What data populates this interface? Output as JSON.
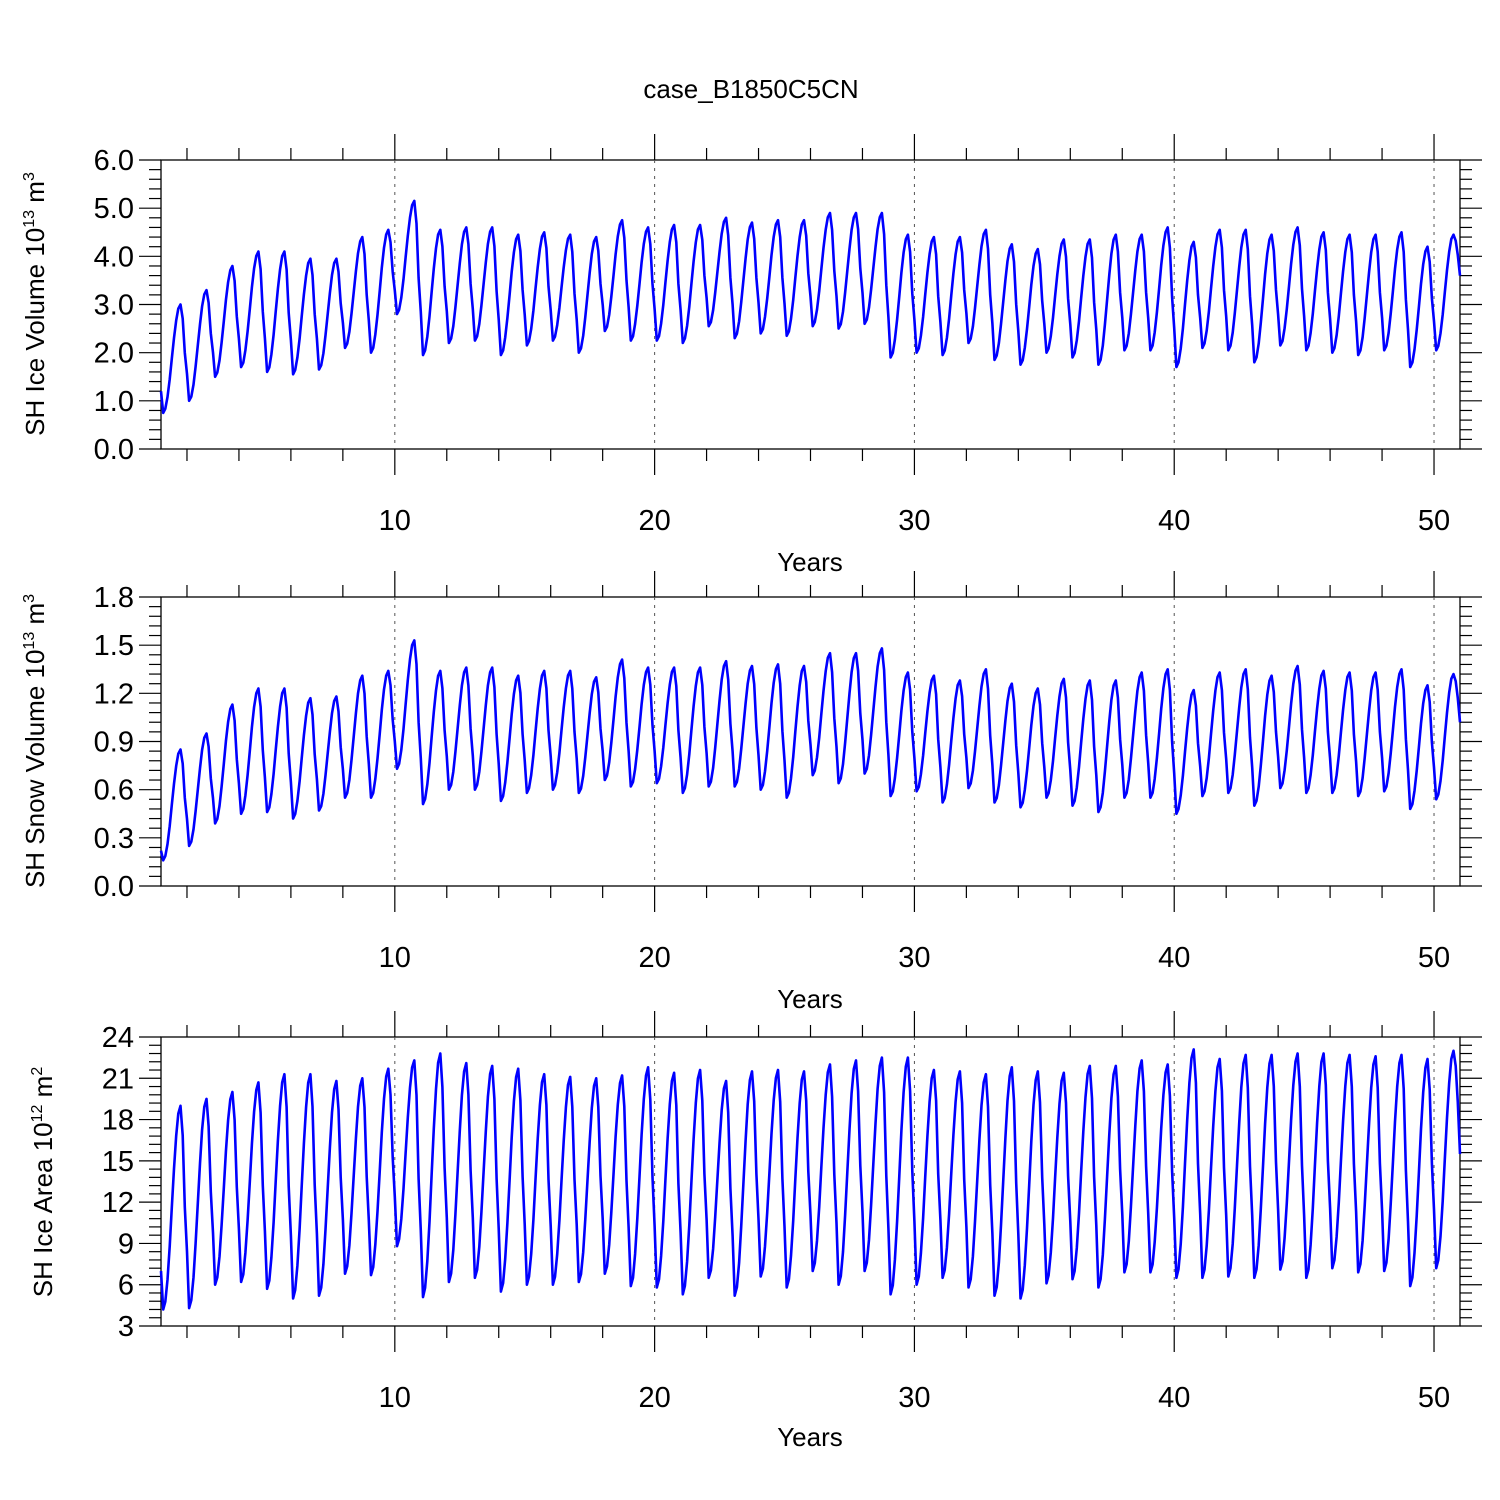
{
  "title": "case_B1850C5CN",
  "chart_data": [
    {
      "type": "line",
      "ylabel": "SH Ice Volume 10",
      "ylabel_exp": "13",
      "ylabel_unit": "m",
      "ylabel_unit_exp": "3",
      "xlabel": "Years",
      "xlim": [
        1,
        51
      ],
      "ylim": [
        0,
        6
      ],
      "yticks": [
        "0.0",
        "1.0",
        "2.0",
        "3.0",
        "4.0",
        "5.0",
        "6.0"
      ],
      "yticks_values": [
        0,
        1,
        2,
        3,
        4,
        5,
        6
      ],
      "xticks": [
        "10",
        "20",
        "30",
        "40",
        "50"
      ],
      "xticks_values": [
        10,
        20,
        30,
        40,
        50
      ],
      "series": [
        {
          "name": "SH ice volume",
          "color": "#0000ff",
          "start_value": 1.2,
          "end_value": 3.6,
          "annual_max": [
            3.0,
            3.3,
            3.8,
            4.1,
            4.1,
            3.95,
            3.95,
            4.4,
            4.55,
            5.15,
            4.55,
            4.6,
            4.6,
            4.45,
            4.5,
            4.45,
            4.4,
            4.75,
            4.6,
            4.65,
            4.65,
            4.8,
            4.7,
            4.75,
            4.75,
            4.9,
            4.9,
            4.9,
            4.45,
            4.4,
            4.4,
            4.55,
            4.25,
            4.15,
            4.35,
            4.35,
            4.45,
            4.45,
            4.6,
            4.3,
            4.55,
            4.55,
            4.45,
            4.6,
            4.5,
            4.45,
            4.45,
            4.5,
            4.2,
            4.45
          ],
          "annual_min": [
            0.75,
            1.0,
            1.5,
            1.7,
            1.6,
            1.55,
            1.65,
            2.1,
            2.0,
            2.8,
            1.95,
            2.2,
            2.25,
            1.95,
            2.15,
            2.25,
            2.0,
            2.45,
            2.25,
            2.25,
            2.2,
            2.55,
            2.3,
            2.4,
            2.35,
            2.55,
            2.5,
            2.6,
            1.9,
            2.0,
            1.95,
            2.2,
            1.85,
            1.75,
            2.0,
            1.9,
            1.75,
            2.05,
            2.05,
            1.7,
            2.1,
            2.05,
            1.8,
            2.15,
            2.05,
            2.0,
            1.95,
            2.05,
            1.7,
            2.05
          ]
        }
      ]
    },
    {
      "type": "line",
      "ylabel": "SH Snow Volume 10",
      "ylabel_exp": "13",
      "ylabel_unit": "m",
      "ylabel_unit_exp": "3",
      "xlabel": "Years",
      "xlim": [
        1,
        51
      ],
      "ylim": [
        0,
        1.8
      ],
      "yticks": [
        "0.0",
        "0.3",
        "0.6",
        "0.9",
        "1.2",
        "1.5",
        "1.8"
      ],
      "yticks_values": [
        0,
        0.3,
        0.6,
        0.9,
        1.2,
        1.5,
        1.8
      ],
      "xticks": [
        "10",
        "20",
        "30",
        "40",
        "50"
      ],
      "xticks_values": [
        10,
        20,
        30,
        40,
        50
      ],
      "series": [
        {
          "name": "SH snow volume",
          "color": "#0000ff",
          "start_value": 0.22,
          "end_value": 1.02,
          "annual_max": [
            0.85,
            0.95,
            1.13,
            1.23,
            1.23,
            1.17,
            1.18,
            1.31,
            1.34,
            1.53,
            1.34,
            1.36,
            1.36,
            1.31,
            1.34,
            1.34,
            1.3,
            1.41,
            1.36,
            1.36,
            1.36,
            1.4,
            1.37,
            1.38,
            1.37,
            1.45,
            1.45,
            1.48,
            1.33,
            1.31,
            1.28,
            1.35,
            1.26,
            1.23,
            1.29,
            1.28,
            1.28,
            1.33,
            1.35,
            1.22,
            1.33,
            1.35,
            1.31,
            1.37,
            1.34,
            1.33,
            1.33,
            1.35,
            1.25,
            1.32
          ],
          "annual_min": [
            0.16,
            0.25,
            0.39,
            0.45,
            0.46,
            0.42,
            0.47,
            0.55,
            0.55,
            0.73,
            0.51,
            0.6,
            0.6,
            0.53,
            0.58,
            0.6,
            0.58,
            0.66,
            0.62,
            0.64,
            0.58,
            0.62,
            0.62,
            0.6,
            0.55,
            0.69,
            0.64,
            0.7,
            0.56,
            0.59,
            0.52,
            0.61,
            0.52,
            0.49,
            0.55,
            0.5,
            0.46,
            0.55,
            0.55,
            0.45,
            0.56,
            0.58,
            0.5,
            0.61,
            0.58,
            0.58,
            0.56,
            0.59,
            0.48,
            0.54
          ]
        }
      ]
    },
    {
      "type": "line",
      "ylabel": "SH Ice Area 10",
      "ylabel_exp": "12",
      "ylabel_unit": "m",
      "ylabel_unit_exp": "2",
      "xlabel": "Years",
      "xlim": [
        1,
        51
      ],
      "ylim": [
        3,
        24
      ],
      "yticks": [
        "3",
        "6",
        "9",
        "12",
        "15",
        "18",
        "21",
        "24"
      ],
      "yticks_values": [
        3,
        6,
        9,
        12,
        15,
        18,
        21,
        24
      ],
      "xticks": [
        "10",
        "20",
        "30",
        "40",
        "50"
      ],
      "xticks_values": [
        10,
        20,
        30,
        40,
        50
      ],
      "series": [
        {
          "name": "SH ice area",
          "color": "#0000ff",
          "start_value": 7.0,
          "end_value": 15.5,
          "annual_max": [
            19.0,
            19.5,
            20.0,
            20.7,
            21.3,
            21.3,
            20.8,
            21.0,
            21.7,
            22.3,
            22.8,
            22.1,
            21.9,
            21.7,
            21.3,
            21.1,
            21.0,
            21.2,
            21.8,
            21.4,
            21.6,
            20.8,
            21.5,
            21.6,
            21.5,
            22.0,
            22.3,
            22.5,
            22.5,
            21.6,
            21.5,
            21.3,
            21.8,
            21.5,
            21.4,
            21.9,
            21.9,
            22.3,
            22.0,
            23.1,
            22.4,
            22.7,
            22.7,
            22.8,
            22.8,
            22.7,
            22.6,
            22.7,
            22.4,
            23.0
          ],
          "annual_min": [
            4.2,
            4.3,
            6.0,
            6.2,
            5.7,
            5.0,
            5.2,
            6.8,
            6.7,
            8.8,
            5.1,
            6.2,
            6.5,
            5.5,
            6.0,
            6.0,
            6.2,
            6.8,
            5.9,
            5.8,
            5.3,
            6.5,
            5.2,
            6.6,
            5.8,
            7.0,
            6.0,
            7.0,
            5.3,
            6.0,
            6.5,
            5.8,
            5.2,
            5.0,
            6.1,
            6.4,
            5.8,
            6.9,
            6.9,
            6.5,
            6.5,
            6.6,
            6.5,
            7.1,
            6.5,
            7.2,
            6.9,
            7.0,
            5.9,
            7.2
          ]
        }
      ]
    }
  ]
}
